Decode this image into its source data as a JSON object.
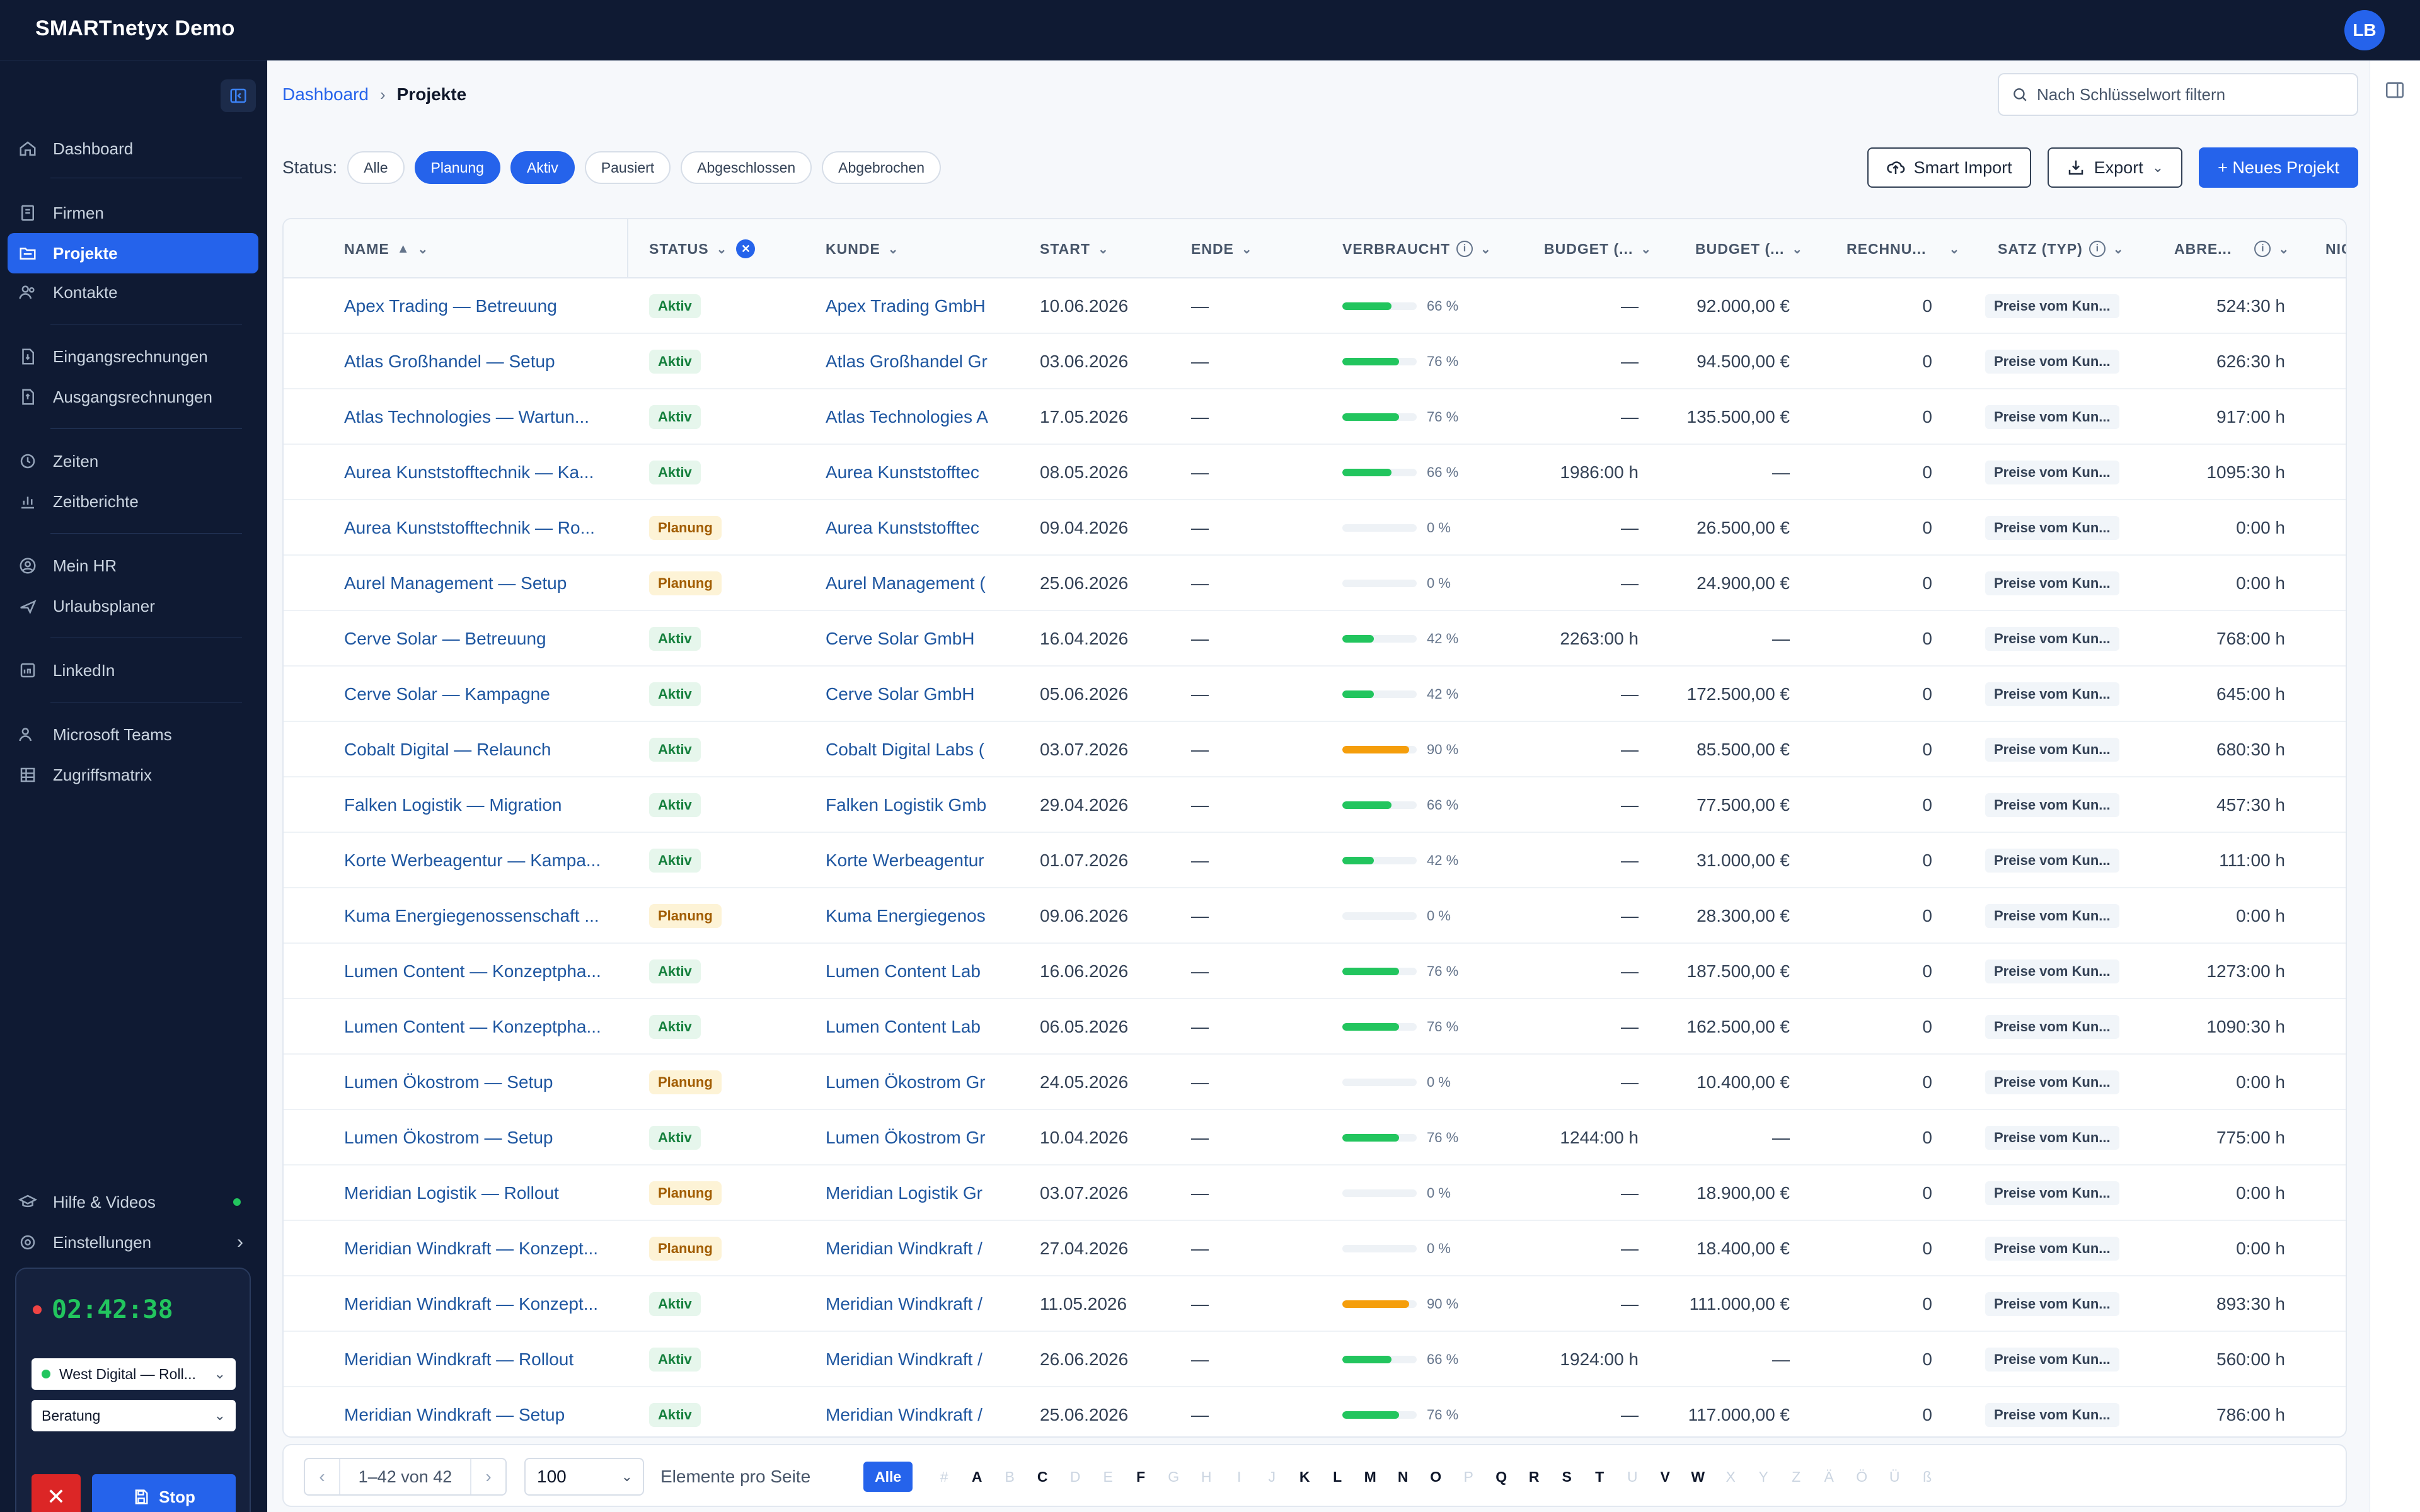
{
  "app": {
    "title": "SMARTnetyx Demo",
    "user_initials": "LB"
  },
  "sidebar": {
    "items": [
      {
        "label": "Dashboard",
        "icon": "home-icon"
      },
      {
        "label": "Firmen",
        "icon": "building-icon"
      },
      {
        "label": "Projekte",
        "icon": "folder-icon",
        "active": true
      },
      {
        "label": "Kontakte",
        "icon": "users-icon"
      },
      {
        "label": "Eingangsrechnungen",
        "icon": "invoice-in-icon"
      },
      {
        "label": "Ausgangsrechnungen",
        "icon": "invoice-out-icon"
      },
      {
        "label": "Zeiten",
        "icon": "clock-icon"
      },
      {
        "label": "Zeitberichte",
        "icon": "chart-icon"
      },
      {
        "label": "Mein HR",
        "icon": "user-circle-icon"
      },
      {
        "label": "Urlaubsplaner",
        "icon": "plane-icon"
      },
      {
        "label": "LinkedIn",
        "icon": "linkedin-icon"
      },
      {
        "label": "Microsoft Teams",
        "icon": "teams-icon"
      },
      {
        "label": "Zugriffsmatrix",
        "icon": "grid-icon"
      }
    ],
    "help_label": "Hilfe & Videos",
    "settings_label": "Einstellungen",
    "timer": {
      "time": "02:42:38",
      "project": "West Digital — Roll...",
      "activity": "Beratung",
      "stop_label": "Stop"
    }
  },
  "breadcrumb": {
    "home": "Dashboard",
    "current": "Projekte"
  },
  "search": {
    "placeholder": "Nach Schlüsselwort filtern"
  },
  "status_filter": {
    "label": "Status:",
    "chips": [
      {
        "label": "Alle",
        "on": false
      },
      {
        "label": "Planung",
        "on": true
      },
      {
        "label": "Aktiv",
        "on": true
      },
      {
        "label": "Pausiert",
        "on": false
      },
      {
        "label": "Abgeschlossen",
        "on": false
      },
      {
        "label": "Abgebrochen",
        "on": false
      }
    ]
  },
  "actions": {
    "smart_import": "Smart Import",
    "export": "Export",
    "new_project": "+ Neues Projekt"
  },
  "table": {
    "headers": {
      "name": "NAME",
      "status": "STATUS",
      "kunde": "KUNDE",
      "start": "START",
      "ende": "ENDE",
      "verbraucht": "VERBRAUCHT",
      "budget1": "BUDGET (...",
      "budget2": "BUDGET (...",
      "rechnu": "RECHNU...",
      "satz": "SATZ (TYP)",
      "abre": "ABRE...",
      "nich": "NICH"
    },
    "rows": [
      {
        "name": "Apex Trading — Betreuung",
        "status": "Aktiv",
        "kunde": "Apex Trading GmbH",
        "start": "10.06.2026",
        "ende": "—",
        "pct": 66,
        "pct_label": "66 %",
        "budget_h": "—",
        "budget_eur": "92.000,00 €",
        "rech": "0",
        "satz": "Preise vom Kun...",
        "abre": "524:30 h"
      },
      {
        "name": "Atlas Großhandel — Setup",
        "status": "Aktiv",
        "kunde": "Atlas Großhandel Gr",
        "start": "03.06.2026",
        "ende": "—",
        "pct": 76,
        "pct_label": "76 %",
        "budget_h": "—",
        "budget_eur": "94.500,00 €",
        "rech": "0",
        "satz": "Preise vom Kun...",
        "abre": "626:30 h"
      },
      {
        "name": "Atlas Technologies — Wartun...",
        "status": "Aktiv",
        "kunde": "Atlas Technologies A",
        "start": "17.05.2026",
        "ende": "—",
        "pct": 76,
        "pct_label": "76 %",
        "budget_h": "—",
        "budget_eur": "135.500,00 €",
        "rech": "0",
        "satz": "Preise vom Kun...",
        "abre": "917:00 h"
      },
      {
        "name": "Aurea Kunststofftechnik — Ka...",
        "status": "Aktiv",
        "kunde": "Aurea Kunststofftec",
        "start": "08.05.2026",
        "ende": "—",
        "pct": 66,
        "pct_label": "66 %",
        "budget_h": "1986:00 h",
        "budget_eur": "—",
        "rech": "0",
        "satz": "Preise vom Kun...",
        "abre": "1095:30 h"
      },
      {
        "name": "Aurea Kunststofftechnik — Ro...",
        "status": "Planung",
        "kunde": "Aurea Kunststofftec",
        "start": "09.04.2026",
        "ende": "—",
        "pct": 0,
        "pct_label": "0 %",
        "budget_h": "—",
        "budget_eur": "26.500,00 €",
        "rech": "0",
        "satz": "Preise vom Kun...",
        "abre": "0:00 h"
      },
      {
        "name": "Aurel Management — Setup",
        "status": "Planung",
        "kunde": "Aurel Management (",
        "start": "25.06.2026",
        "ende": "—",
        "pct": 0,
        "pct_label": "0 %",
        "budget_h": "—",
        "budget_eur": "24.900,00 €",
        "rech": "0",
        "satz": "Preise vom Kun...",
        "abre": "0:00 h"
      },
      {
        "name": "Cerve Solar — Betreuung",
        "status": "Aktiv",
        "kunde": "Cerve Solar GmbH",
        "start": "16.04.2026",
        "ende": "—",
        "pct": 42,
        "pct_label": "42 %",
        "budget_h": "2263:00 h",
        "budget_eur": "—",
        "rech": "0",
        "satz": "Preise vom Kun...",
        "abre": "768:00 h"
      },
      {
        "name": "Cerve Solar — Kampagne",
        "status": "Aktiv",
        "kunde": "Cerve Solar GmbH",
        "start": "05.06.2026",
        "ende": "—",
        "pct": 42,
        "pct_label": "42 %",
        "budget_h": "—",
        "budget_eur": "172.500,00 €",
        "rech": "0",
        "satz": "Preise vom Kun...",
        "abre": "645:00 h"
      },
      {
        "name": "Cobalt Digital — Relaunch",
        "status": "Aktiv",
        "kunde": "Cobalt Digital Labs (",
        "start": "03.07.2026",
        "ende": "—",
        "pct": 90,
        "pct_label": "90 %",
        "budget_h": "—",
        "budget_eur": "85.500,00 €",
        "rech": "0",
        "satz": "Preise vom Kun...",
        "abre": "680:30 h"
      },
      {
        "name": "Falken Logistik — Migration",
        "status": "Aktiv",
        "kunde": "Falken Logistik Gmb",
        "start": "29.04.2026",
        "ende": "—",
        "pct": 66,
        "pct_label": "66 %",
        "budget_h": "—",
        "budget_eur": "77.500,00 €",
        "rech": "0",
        "satz": "Preise vom Kun...",
        "abre": "457:30 h"
      },
      {
        "name": "Korte Werbeagentur — Kampa...",
        "status": "Aktiv",
        "kunde": "Korte Werbeagentur",
        "start": "01.07.2026",
        "ende": "—",
        "pct": 42,
        "pct_label": "42 %",
        "budget_h": "—",
        "budget_eur": "31.000,00 €",
        "rech": "0",
        "satz": "Preise vom Kun...",
        "abre": "111:00 h"
      },
      {
        "name": "Kuma Energiegenossenschaft ...",
        "status": "Planung",
        "kunde": "Kuma Energiegenos",
        "start": "09.06.2026",
        "ende": "—",
        "pct": 0,
        "pct_label": "0 %",
        "budget_h": "—",
        "budget_eur": "28.300,00 €",
        "rech": "0",
        "satz": "Preise vom Kun...",
        "abre": "0:00 h"
      },
      {
        "name": "Lumen Content — Konzeptpha...",
        "status": "Aktiv",
        "kunde": "Lumen Content Lab",
        "start": "16.06.2026",
        "ende": "—",
        "pct": 76,
        "pct_label": "76 %",
        "budget_h": "—",
        "budget_eur": "187.500,00 €",
        "rech": "0",
        "satz": "Preise vom Kun...",
        "abre": "1273:00 h"
      },
      {
        "name": "Lumen Content — Konzeptpha...",
        "status": "Aktiv",
        "kunde": "Lumen Content Lab",
        "start": "06.05.2026",
        "ende": "—",
        "pct": 76,
        "pct_label": "76 %",
        "budget_h": "—",
        "budget_eur": "162.500,00 €",
        "rech": "0",
        "satz": "Preise vom Kun...",
        "abre": "1090:30 h"
      },
      {
        "name": "Lumen Ökostrom — Setup",
        "status": "Planung",
        "kunde": "Lumen Ökostrom Gr",
        "start": "24.05.2026",
        "ende": "—",
        "pct": 0,
        "pct_label": "0 %",
        "budget_h": "—",
        "budget_eur": "10.400,00 €",
        "rech": "0",
        "satz": "Preise vom Kun...",
        "abre": "0:00 h"
      },
      {
        "name": "Lumen Ökostrom — Setup",
        "status": "Aktiv",
        "kunde": "Lumen Ökostrom Gr",
        "start": "10.04.2026",
        "ende": "—",
        "pct": 76,
        "pct_label": "76 %",
        "budget_h": "1244:00 h",
        "budget_eur": "—",
        "rech": "0",
        "satz": "Preise vom Kun...",
        "abre": "775:00 h"
      },
      {
        "name": "Meridian Logistik — Rollout",
        "status": "Planung",
        "kunde": "Meridian Logistik Gr",
        "start": "03.07.2026",
        "ende": "—",
        "pct": 0,
        "pct_label": "0 %",
        "budget_h": "—",
        "budget_eur": "18.900,00 €",
        "rech": "0",
        "satz": "Preise vom Kun...",
        "abre": "0:00 h"
      },
      {
        "name": "Meridian Windkraft — Konzept...",
        "status": "Planung",
        "kunde": "Meridian Windkraft /",
        "start": "27.04.2026",
        "ende": "—",
        "pct": 0,
        "pct_label": "0 %",
        "budget_h": "—",
        "budget_eur": "18.400,00 €",
        "rech": "0",
        "satz": "Preise vom Kun...",
        "abre": "0:00 h"
      },
      {
        "name": "Meridian Windkraft — Konzept...",
        "status": "Aktiv",
        "kunde": "Meridian Windkraft /",
        "start": "11.05.2026",
        "ende": "—",
        "pct": 90,
        "pct_label": "90 %",
        "budget_h": "—",
        "budget_eur": "111.000,00 €",
        "rech": "0",
        "satz": "Preise vom Kun...",
        "abre": "893:30 h"
      },
      {
        "name": "Meridian Windkraft — Rollout",
        "status": "Aktiv",
        "kunde": "Meridian Windkraft /",
        "start": "26.06.2026",
        "ende": "—",
        "pct": 66,
        "pct_label": "66 %",
        "budget_h": "1924:00 h",
        "budget_eur": "—",
        "rech": "0",
        "satz": "Preise vom Kun...",
        "abre": "560:00 h"
      },
      {
        "name": "Meridian Windkraft — Setup",
        "status": "Aktiv",
        "kunde": "Meridian Windkraft /",
        "start": "25.06.2026",
        "ende": "—",
        "pct": 76,
        "pct_label": "76 %",
        "budget_h": "—",
        "budget_eur": "117.000,00 €",
        "rech": "0",
        "satz": "Preise vom Kun...",
        "abre": "786:00 h"
      }
    ]
  },
  "pagination": {
    "range": "1–42 von 42",
    "page_size": "100",
    "page_size_label": "Elemente pro Seite",
    "all_label": "Alle",
    "letters": [
      {
        "l": "#",
        "on": false
      },
      {
        "l": "A",
        "on": true
      },
      {
        "l": "B",
        "on": false
      },
      {
        "l": "C",
        "on": true
      },
      {
        "l": "D",
        "on": false
      },
      {
        "l": "E",
        "on": false
      },
      {
        "l": "F",
        "on": true
      },
      {
        "l": "G",
        "on": false
      },
      {
        "l": "H",
        "on": false
      },
      {
        "l": "I",
        "on": false
      },
      {
        "l": "J",
        "on": false
      },
      {
        "l": "K",
        "on": true
      },
      {
        "l": "L",
        "on": true
      },
      {
        "l": "M",
        "on": true
      },
      {
        "l": "N",
        "on": true
      },
      {
        "l": "O",
        "on": true
      },
      {
        "l": "P",
        "on": false
      },
      {
        "l": "Q",
        "on": true
      },
      {
        "l": "R",
        "on": true
      },
      {
        "l": "S",
        "on": true
      },
      {
        "l": "T",
        "on": true
      },
      {
        "l": "U",
        "on": false
      },
      {
        "l": "V",
        "on": true
      },
      {
        "l": "W",
        "on": true
      },
      {
        "l": "X",
        "on": false
      },
      {
        "l": "Y",
        "on": false
      },
      {
        "l": "Z",
        "on": false
      },
      {
        "l": "Ä",
        "on": false
      },
      {
        "l": "Ö",
        "on": false
      },
      {
        "l": "Ü",
        "on": false
      },
      {
        "l": "ß",
        "on": false
      }
    ]
  },
  "colors": {
    "accent": "#2563eb",
    "sidebar_bg": "#0f1a33",
    "bar_green": "#22c55e",
    "bar_orange": "#f59e0b"
  }
}
